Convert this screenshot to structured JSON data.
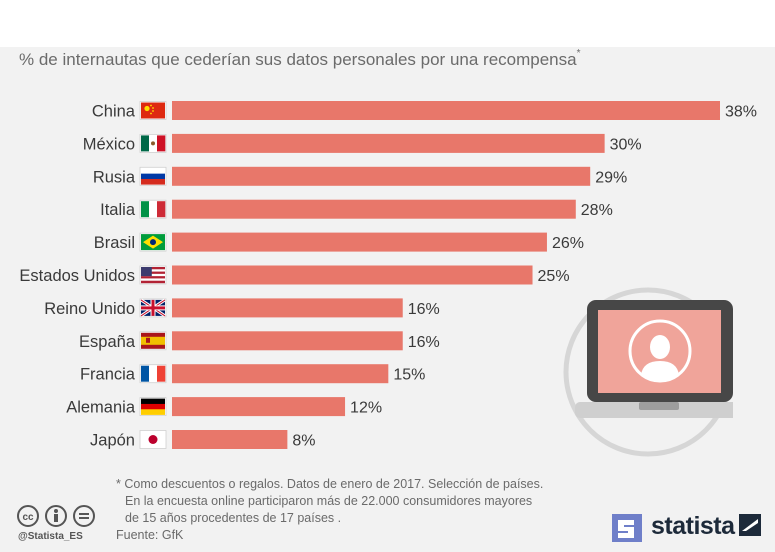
{
  "header": {
    "subtitle": "% de internautas que cederían sus datos personales por una recompensa",
    "subtitle_mark": "*"
  },
  "chart_data": {
    "type": "bar",
    "orientation": "horizontal",
    "categories": [
      "China",
      "México",
      "Rusia",
      "Italia",
      "Brasil",
      "Estados Unidos",
      "Reino Unido",
      "España",
      "Francia",
      "Alemania",
      "Japón"
    ],
    "values": [
      38,
      30,
      29,
      28,
      26,
      25,
      16,
      16,
      15,
      12,
      8
    ],
    "value_labels": [
      "38%",
      "30%",
      "29%",
      "28%",
      "26%",
      "25%",
      "16%",
      "16%",
      "15%",
      "12%",
      "8%"
    ],
    "flag_icons": [
      "china-flag-icon",
      "mexico-flag-icon",
      "russia-flag-icon",
      "italy-flag-icon",
      "brazil-flag-icon",
      "usa-flag-icon",
      "uk-flag-icon",
      "spain-flag-icon",
      "france-flag-icon",
      "germany-flag-icon",
      "japan-flag-icon"
    ],
    "xlim": [
      0,
      38
    ],
    "bar_color": "#e8776a",
    "grid": false
  },
  "footer": {
    "note_lines": [
      "* Como descuentos o regalos. Datos de enero de 2017. Selección de países.",
      "En la encuesta online participaron más de 22.000 consumidores mayores",
      "de 15 años procedentes de 17 países ."
    ],
    "source": "Fuente: GfK",
    "handle": "@Statista_ES",
    "brand": "statista",
    "license_icon": "creative-commons-icon"
  },
  "illustration": {
    "icon": "laptop-user-icon",
    "screen_color": "#f0a49a",
    "frame_color": "#474747"
  }
}
